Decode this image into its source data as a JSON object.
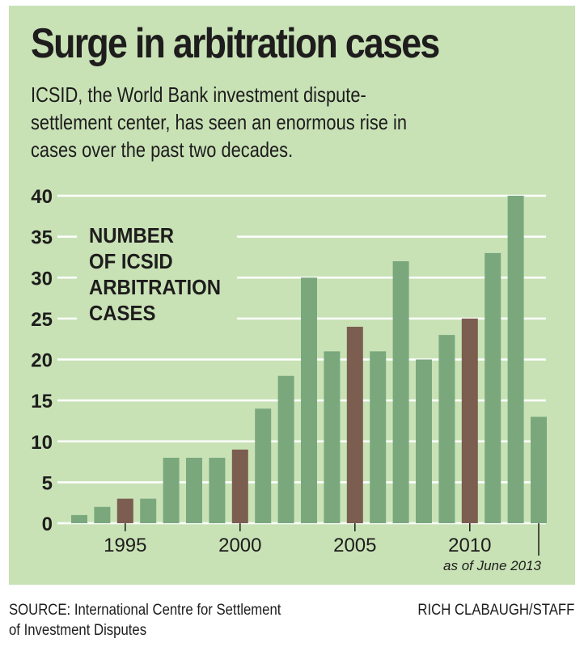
{
  "header": {
    "title": "Surge in arbitration cases",
    "subtitle_lines": [
      "ICSID, the World Bank investment dispute-",
      "settlement center, has seen an enormous rise in",
      "cases over the past two decades."
    ]
  },
  "footer": {
    "source_lines": [
      "SOURCE: International Centre for Settlement",
      "of Investment Disputes"
    ],
    "credit": "RICH CLABAUGH/STAFF"
  },
  "colors": {
    "background": "#c8e2b6",
    "bar": "#7aa87c",
    "highlight_bar": "#7b5e50",
    "gridline": "#ffffff",
    "text": "#1e1c1c"
  },
  "chart_data": {
    "type": "bar",
    "title": "Surge in arbitration cases",
    "label_lines": [
      "NUMBER",
      "OF ICSID",
      "ARBITRATION",
      "CASES"
    ],
    "xlabel": "",
    "ylabel": "Number of ICSID arbitration cases",
    "ylim": [
      0,
      40
    ],
    "yticks": [
      0,
      5,
      10,
      15,
      20,
      25,
      30,
      35,
      40
    ],
    "grid": true,
    "categories": [
      "1993",
      "1994",
      "1995",
      "1996",
      "1997",
      "1998",
      "1999",
      "2000",
      "2001",
      "2002",
      "2003",
      "2004",
      "2005",
      "2006",
      "2007",
      "2008",
      "2009",
      "2010",
      "2011",
      "2012",
      "2013"
    ],
    "values": [
      1,
      2,
      3,
      3,
      8,
      8,
      8,
      9,
      14,
      18,
      30,
      21,
      24,
      21,
      32,
      20,
      23,
      25,
      33,
      40,
      13
    ],
    "highlighted": [
      "1995",
      "2000",
      "2005",
      "2010"
    ],
    "xtick_labels": [
      "1995",
      "2000",
      "2005",
      "2010"
    ],
    "annotation": {
      "category": "2013",
      "text": "as of June 2013"
    }
  }
}
